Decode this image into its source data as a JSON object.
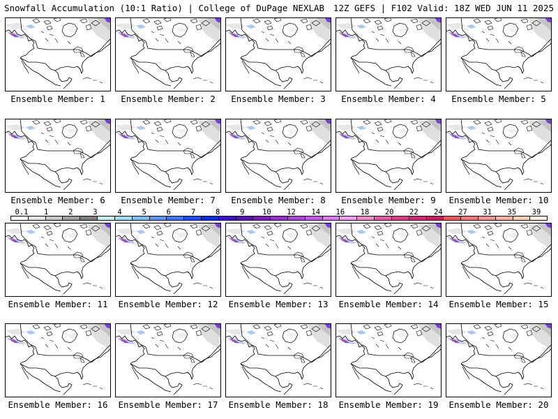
{
  "header": {
    "left": "Snowfall Accumulation (10:1 Ratio) | College of DuPage NEXLAB",
    "right": "12Z GEFS | F102 Valid: 18Z WED JUN 11 2025"
  },
  "panels": [
    {
      "label": "Ensemble Member: 1"
    },
    {
      "label": "Ensemble Member: 2"
    },
    {
      "label": "Ensemble Member: 3"
    },
    {
      "label": "Ensemble Member: 4"
    },
    {
      "label": "Ensemble Member: 5"
    },
    {
      "label": "Ensemble Member: 6"
    },
    {
      "label": "Ensemble Member: 7"
    },
    {
      "label": "Ensemble Member: 8"
    },
    {
      "label": "Ensemble Member: 9"
    },
    {
      "label": "Ensemble Member: 10"
    },
    {
      "label": "Ensemble Member: 11"
    },
    {
      "label": "Ensemble Member: 12"
    },
    {
      "label": "Ensemble Member: 13"
    },
    {
      "label": "Ensemble Member: 14"
    },
    {
      "label": "Ensemble Member: 15"
    },
    {
      "label": "Ensemble Member: 16"
    },
    {
      "label": "Ensemble Member: 17"
    },
    {
      "label": "Ensemble Member: 18"
    },
    {
      "label": "Ensemble Member: 19"
    },
    {
      "label": "Ensemble Member: 20"
    }
  ],
  "colorbar": {
    "labels": [
      "0.1",
      "1",
      "2",
      "3",
      "4",
      "5",
      "6",
      "7",
      "8",
      "9",
      "10",
      "12",
      "14",
      "16",
      "18",
      "20",
      "22",
      "24",
      "27",
      "31",
      "35",
      "39"
    ],
    "colors": [
      "#ffffff",
      "#e6e6e6",
      "#c8c8c8",
      "#a0a0a0",
      "#7f7f7f",
      "#c8f0f0",
      "#a0dcf0",
      "#7fbef0",
      "#5a9bf0",
      "#3c78f0",
      "#1e50f0",
      "#0a2fdc",
      "#3c14c8",
      "#5a14b4",
      "#7a1eb4",
      "#9632c8",
      "#aa46dc",
      "#c85ae6",
      "#dc78f0",
      "#f0a0f0",
      "#f08cc8",
      "#e65aaa",
      "#dc3c8c",
      "#d2287a",
      "#c81e64",
      "#e65a5a",
      "#f07878",
      "#f09696",
      "#f5b4a0",
      "#fad2b4",
      "#fff0dc"
    ]
  }
}
